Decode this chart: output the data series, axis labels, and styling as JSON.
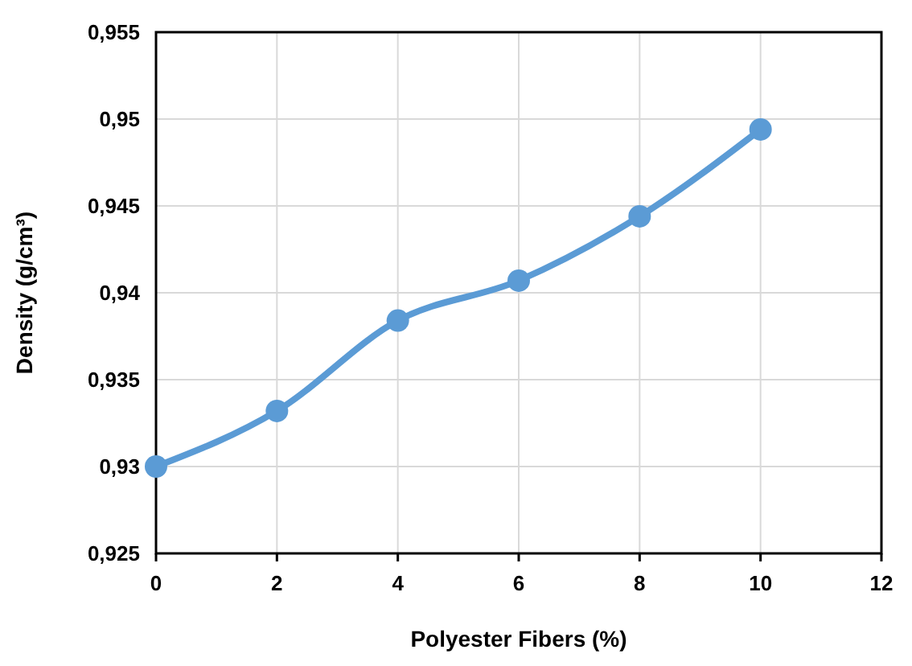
{
  "chart_data": {
    "type": "line",
    "xlabel": "Polyester Fibers (%)",
    "ylabel": "Density (g/cm³)",
    "x": [
      0,
      2,
      4,
      6,
      8,
      10
    ],
    "series": [
      {
        "color": "#5b9bd5",
        "values": [
          0.93,
          0.9332,
          0.9384,
          0.9407,
          0.9444,
          0.9494
        ]
      }
    ],
    "xlim": [
      0,
      12
    ],
    "xticks": [
      0,
      2,
      4,
      6,
      8,
      10,
      12
    ],
    "ylim": [
      0.925,
      0.955
    ],
    "yticks": [
      {
        "value": 0.925,
        "label": "0,925"
      },
      {
        "value": 0.93,
        "label": "0,93"
      },
      {
        "value": 0.935,
        "label": "0,935"
      },
      {
        "value": 0.94,
        "label": "0,94"
      },
      {
        "value": 0.945,
        "label": "0,945"
      },
      {
        "value": 0.95,
        "label": "0,95"
      },
      {
        "value": 0.955,
        "label": "0,955"
      }
    ],
    "grid": true,
    "marker": "circle",
    "line_style": "solid"
  }
}
